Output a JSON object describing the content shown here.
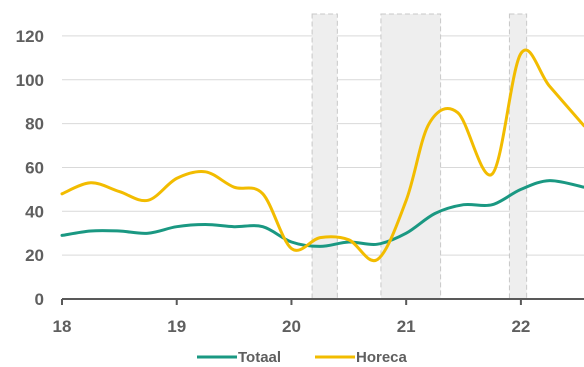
{
  "chart_data": {
    "type": "line",
    "title": "",
    "xlabel": "",
    "ylabel": "",
    "x_ticks": [
      "18",
      "19",
      "20",
      "21",
      "22"
    ],
    "y_ticks": [
      "0",
      "20",
      "40",
      "60",
      "80",
      "100",
      "120"
    ],
    "xlim": [
      18.0,
      22.55
    ],
    "ylim": [
      0,
      130
    ],
    "grid": "horizontal",
    "legend_position": "bottom",
    "shaded_periods": [
      {
        "start": 20.18,
        "end": 20.4
      },
      {
        "start": 20.78,
        "end": 21.3
      },
      {
        "start": 21.9,
        "end": 22.05
      }
    ],
    "series": [
      {
        "name": "Totaal",
        "color": "#1a9882",
        "points": [
          [
            18.0,
            29
          ],
          [
            18.25,
            31
          ],
          [
            18.5,
            31
          ],
          [
            18.75,
            30
          ],
          [
            19.0,
            33
          ],
          [
            19.25,
            34
          ],
          [
            19.5,
            33
          ],
          [
            19.75,
            33
          ],
          [
            20.0,
            26
          ],
          [
            20.25,
            24
          ],
          [
            20.5,
            26
          ],
          [
            20.75,
            25
          ],
          [
            21.0,
            30
          ],
          [
            21.25,
            39
          ],
          [
            21.5,
            43
          ],
          [
            21.75,
            43
          ],
          [
            22.0,
            50
          ],
          [
            22.25,
            54
          ],
          [
            22.55,
            51
          ]
        ]
      },
      {
        "name": "Horeca",
        "color": "#f2bc00",
        "points": [
          [
            18.0,
            48
          ],
          [
            18.25,
            53
          ],
          [
            18.5,
            49
          ],
          [
            18.75,
            45
          ],
          [
            19.0,
            55
          ],
          [
            19.25,
            58
          ],
          [
            19.5,
            51
          ],
          [
            19.75,
            48
          ],
          [
            20.0,
            23
          ],
          [
            20.25,
            28
          ],
          [
            20.5,
            27
          ],
          [
            20.75,
            18
          ],
          [
            21.0,
            45
          ],
          [
            21.2,
            80
          ],
          [
            21.45,
            85
          ],
          [
            21.75,
            57
          ],
          [
            22.0,
            112
          ],
          [
            22.25,
            97
          ],
          [
            22.55,
            79
          ]
        ]
      }
    ]
  }
}
